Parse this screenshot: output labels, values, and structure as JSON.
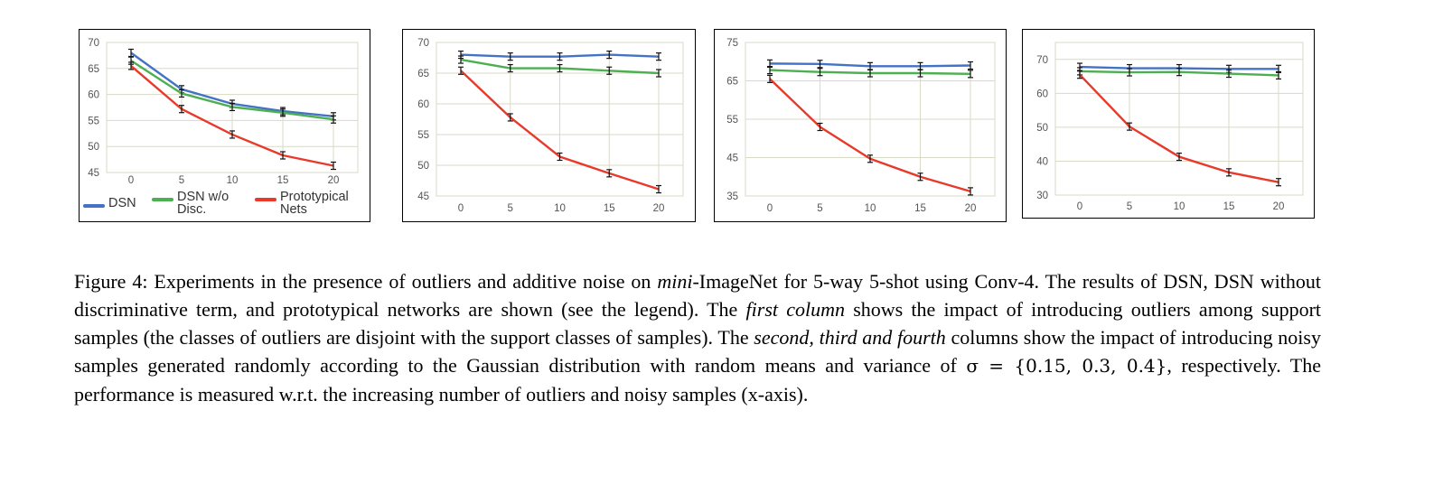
{
  "legend": {
    "entries": [
      {
        "label": "DSN",
        "color": "#4472c4"
      },
      {
        "label": "DSN w/o\nDisc.",
        "color": "#4caf50"
      },
      {
        "label": "Prototypical\nNets",
        "color": "#e8392a"
      }
    ]
  },
  "chart_data": [
    {
      "type": "line",
      "x": [
        0,
        5,
        10,
        15,
        20
      ],
      "ylim": [
        45,
        70
      ],
      "yticks": [
        45,
        50,
        55,
        60,
        65,
        70
      ],
      "grid": true,
      "error_bars": true,
      "series": [
        {
          "name": "DSN",
          "color": "#4472c4",
          "values": [
            68.0,
            61.0,
            58.2,
            56.8,
            55.8
          ]
        },
        {
          "name": "DSN w/o Disc.",
          "color": "#4caf50",
          "values": [
            66.5,
            60.2,
            57.6,
            56.5,
            55.2
          ]
        },
        {
          "name": "Prototypical Nets",
          "color": "#e8392a",
          "values": [
            65.5,
            57.2,
            52.3,
            48.3,
            46.3
          ]
        }
      ]
    },
    {
      "type": "line",
      "x": [
        0,
        5,
        10,
        15,
        20
      ],
      "ylim": [
        45,
        70
      ],
      "yticks": [
        45,
        50,
        55,
        60,
        65,
        70
      ],
      "grid": true,
      "error_bars": true,
      "series": [
        {
          "name": "DSN",
          "color": "#4472c4",
          "values": [
            68.0,
            67.7,
            67.7,
            68.0,
            67.7
          ]
        },
        {
          "name": "DSN w/o Disc.",
          "color": "#4caf50",
          "values": [
            67.2,
            65.8,
            65.8,
            65.4,
            65.0
          ]
        },
        {
          "name": "Prototypical Nets",
          "color": "#e8392a",
          "values": [
            65.4,
            57.8,
            51.4,
            48.7,
            46.1
          ]
        }
      ]
    },
    {
      "type": "line",
      "x": [
        0,
        5,
        10,
        15,
        20
      ],
      "ylim": [
        35,
        75
      ],
      "yticks": [
        35,
        45,
        55,
        65,
        75
      ],
      "grid": true,
      "error_bars": true,
      "series": [
        {
          "name": "DSN",
          "color": "#4472c4",
          "values": [
            69.5,
            69.4,
            68.8,
            68.8,
            69.0
          ]
        },
        {
          "name": "DSN w/o Disc.",
          "color": "#4caf50",
          "values": [
            67.8,
            67.3,
            67.0,
            67.0,
            66.8
          ]
        },
        {
          "name": "Prototypical Nets",
          "color": "#e8392a",
          "values": [
            65.5,
            53.0,
            44.7,
            40.0,
            36.2
          ]
        }
      ]
    },
    {
      "type": "line",
      "x": [
        0,
        5,
        10,
        15,
        20
      ],
      "ylim": [
        30,
        75
      ],
      "yticks": [
        30,
        40,
        50,
        60,
        70
      ],
      "grid": true,
      "error_bars": true,
      "series": [
        {
          "name": "DSN",
          "color": "#4472c4",
          "values": [
            67.8,
            67.4,
            67.4,
            67.2,
            67.2
          ]
        },
        {
          "name": "DSN w/o Disc.",
          "color": "#4caf50",
          "values": [
            66.5,
            66.2,
            66.3,
            65.8,
            65.3
          ]
        },
        {
          "name": "Prototypical Nets",
          "color": "#e8392a",
          "values": [
            65.5,
            50.2,
            41.3,
            36.7,
            33.8
          ]
        }
      ]
    }
  ],
  "caption": {
    "p1": "Figure 4: Experiments in the presence of outliers and additive noise on ",
    "mini": "mini",
    "p2": "-ImageNet for 5-way 5-shot using Conv-4. The results of DSN, DSN without discriminative term, and prototypical networks are shown (see the legend). The ",
    "first_column": "first column",
    "p3": " shows the impact of introducing outliers among support samples (the classes of outliers are disjoint with the support classes of samples). The ",
    "second_cols": "second, third and fourth",
    "p4": " columns show the impact of introducing noisy samples generated randomly according to the Gaussian distribution with random means and variance of ",
    "sigma": "σ = {0.15, 0.3, 0.4}",
    "p5": ", respectively.  The performance is measured w.r.t. the increasing number of outliers and noisy samples (x-axis)."
  }
}
